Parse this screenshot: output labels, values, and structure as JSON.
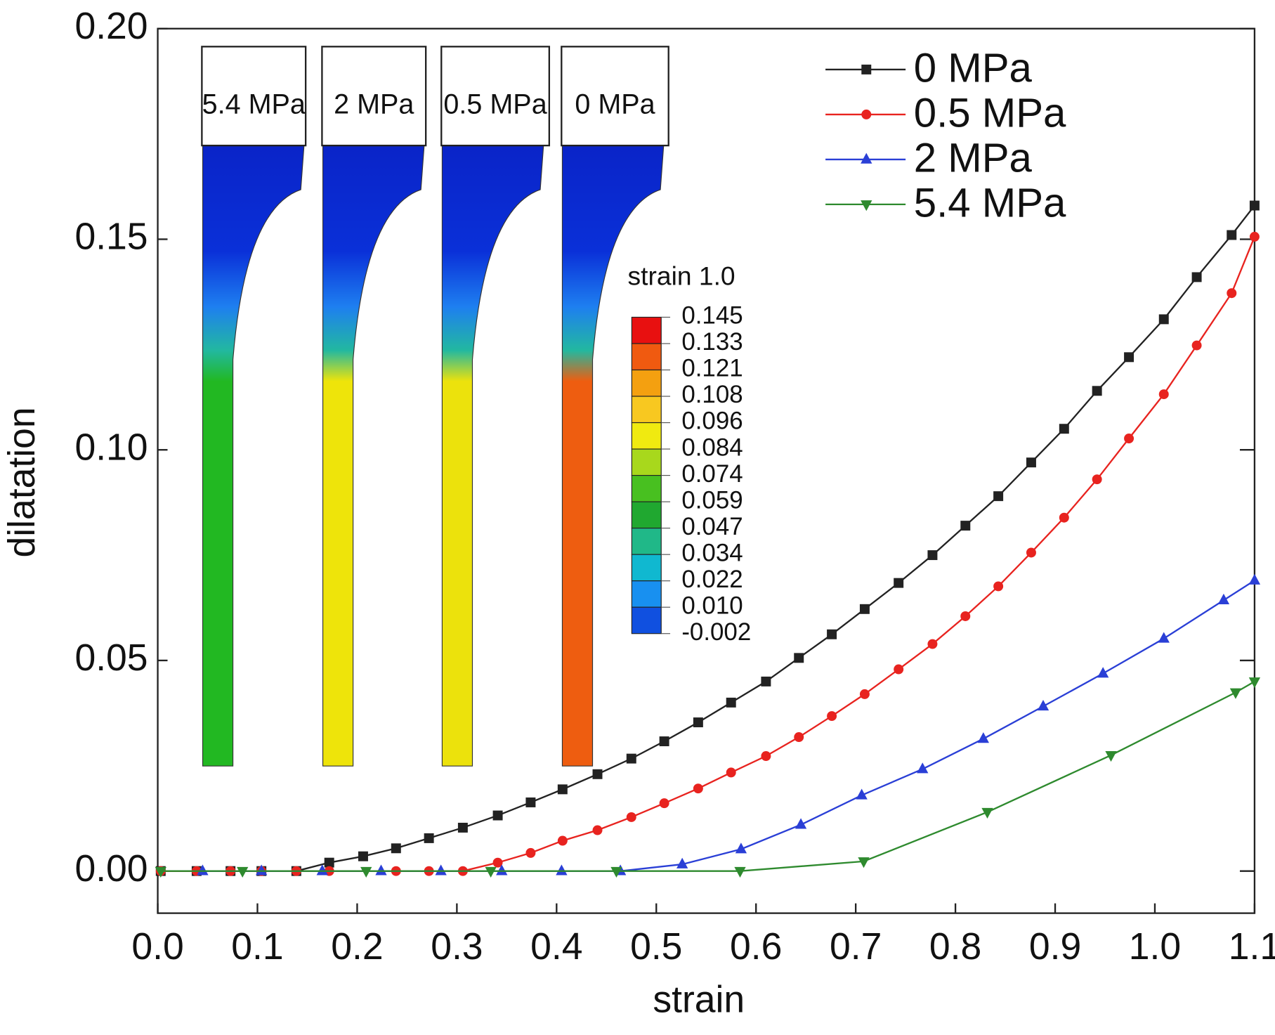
{
  "chart_data": {
    "type": "line",
    "xlabel": "strain",
    "ylabel": "dilatation",
    "xlim": [
      0,
      1.1
    ],
    "ylim": [
      -0.01,
      0.2
    ],
    "xticks": [
      {
        "value": 0,
        "label": "0.0"
      },
      0.1,
      0.2,
      0.3,
      0.4,
      0.5,
      0.6,
      0.7,
      0.8,
      0.9,
      {
        "value": 1,
        "label": "1.0"
      },
      1.1
    ],
    "yticks": [
      {
        "value": 0,
        "label": "0.00"
      },
      0.05,
      {
        "value": 0.1,
        "label": "0.10"
      },
      0.15,
      {
        "value": 0.2,
        "label": "0.20"
      }
    ],
    "legend": "upper right",
    "series": [
      {
        "name": "0 MPa",
        "color": "#222222",
        "marker": "square",
        "x": [
          0.003,
          0.039,
          0.073,
          0.104,
          0.139,
          0.172,
          0.206,
          0.239,
          0.272,
          0.306,
          0.341,
          0.374,
          0.406,
          0.441,
          0.475,
          0.508,
          0.542,
          0.575,
          0.61,
          0.643,
          0.676,
          0.709,
          0.743,
          0.777,
          0.81,
          0.843,
          0.876,
          0.909,
          0.942,
          0.974,
          1.009,
          1.042,
          1.077,
          1.1
        ],
        "values": [
          0,
          0,
          0,
          0,
          0,
          0.002,
          0.0035,
          0.0054,
          0.0078,
          0.0103,
          0.0132,
          0.0163,
          0.0194,
          0.023,
          0.0267,
          0.0308,
          0.0353,
          0.04,
          0.045,
          0.0506,
          0.0562,
          0.0622,
          0.0684,
          0.075,
          0.082,
          0.089,
          0.097,
          0.105,
          0.114,
          0.122,
          0.131,
          0.141,
          0.151,
          0.158
        ]
      },
      {
        "name": "0.5 MPa",
        "color": "#e8231f",
        "marker": "circle",
        "x": [
          0.003,
          0.039,
          0.073,
          0.104,
          0.139,
          0.172,
          0.239,
          0.272,
          0.306,
          0.341,
          0.374,
          0.406,
          0.441,
          0.475,
          0.508,
          0.542,
          0.575,
          0.61,
          0.643,
          0.676,
          0.709,
          0.743,
          0.777,
          0.81,
          0.843,
          0.876,
          0.909,
          0.942,
          0.974,
          1.009,
          1.042,
          1.077,
          1.1
        ],
        "values": [
          0,
          0,
          0,
          0,
          0,
          0,
          0,
          0,
          0,
          0.002,
          0.0043,
          0.0072,
          0.0097,
          0.0128,
          0.0161,
          0.0196,
          0.0234,
          0.0273,
          0.0318,
          0.0368,
          0.042,
          0.0479,
          0.0539,
          0.0605,
          0.0676,
          0.0756,
          0.0839,
          0.093,
          0.1027,
          0.1132,
          0.1248,
          0.1372,
          0.1506
        ]
      },
      {
        "name": "2 MPa",
        "color": "#2a3fd6",
        "marker": "triangle-up",
        "x": [
          0.045,
          0.104,
          0.165,
          0.224,
          0.284,
          0.345,
          0.405,
          0.464,
          0.526,
          0.585,
          0.645,
          0.706,
          0.767,
          0.828,
          0.888,
          0.948,
          1.009,
          1.069,
          1.1
        ],
        "values": [
          0,
          0,
          0,
          0,
          0,
          0,
          0,
          0,
          0.0016,
          0.0052,
          0.011,
          0.018,
          0.0242,
          0.0314,
          0.0391,
          0.0469,
          0.0552,
          0.0643,
          0.069
        ]
      },
      {
        "name": "5.4 MPa",
        "color": "#2e8a2e",
        "marker": "triangle-down",
        "x": [
          0.003,
          0.085,
          0.209,
          0.334,
          0.46,
          0.584,
          0.708,
          0.832,
          0.956,
          1.081,
          1.1
        ],
        "values": [
          0,
          0,
          0,
          0,
          0,
          0,
          0.0023,
          0.014,
          0.0275,
          0.0424,
          0.045
        ]
      }
    ],
    "inset": {
      "specimen_labels": [
        "5.4 MPa",
        "2 MPa",
        "0.5 MPa",
        "0 MPa"
      ],
      "colorbar_title": "strain 1.0",
      "colorbar_labels": [
        "0.145",
        "0.133",
        "0.121",
        "0.108",
        "0.096",
        "0.084",
        "0.074",
        "0.059",
        "0.047",
        "0.034",
        "0.022",
        "0.010",
        "-0.002"
      ]
    }
  }
}
